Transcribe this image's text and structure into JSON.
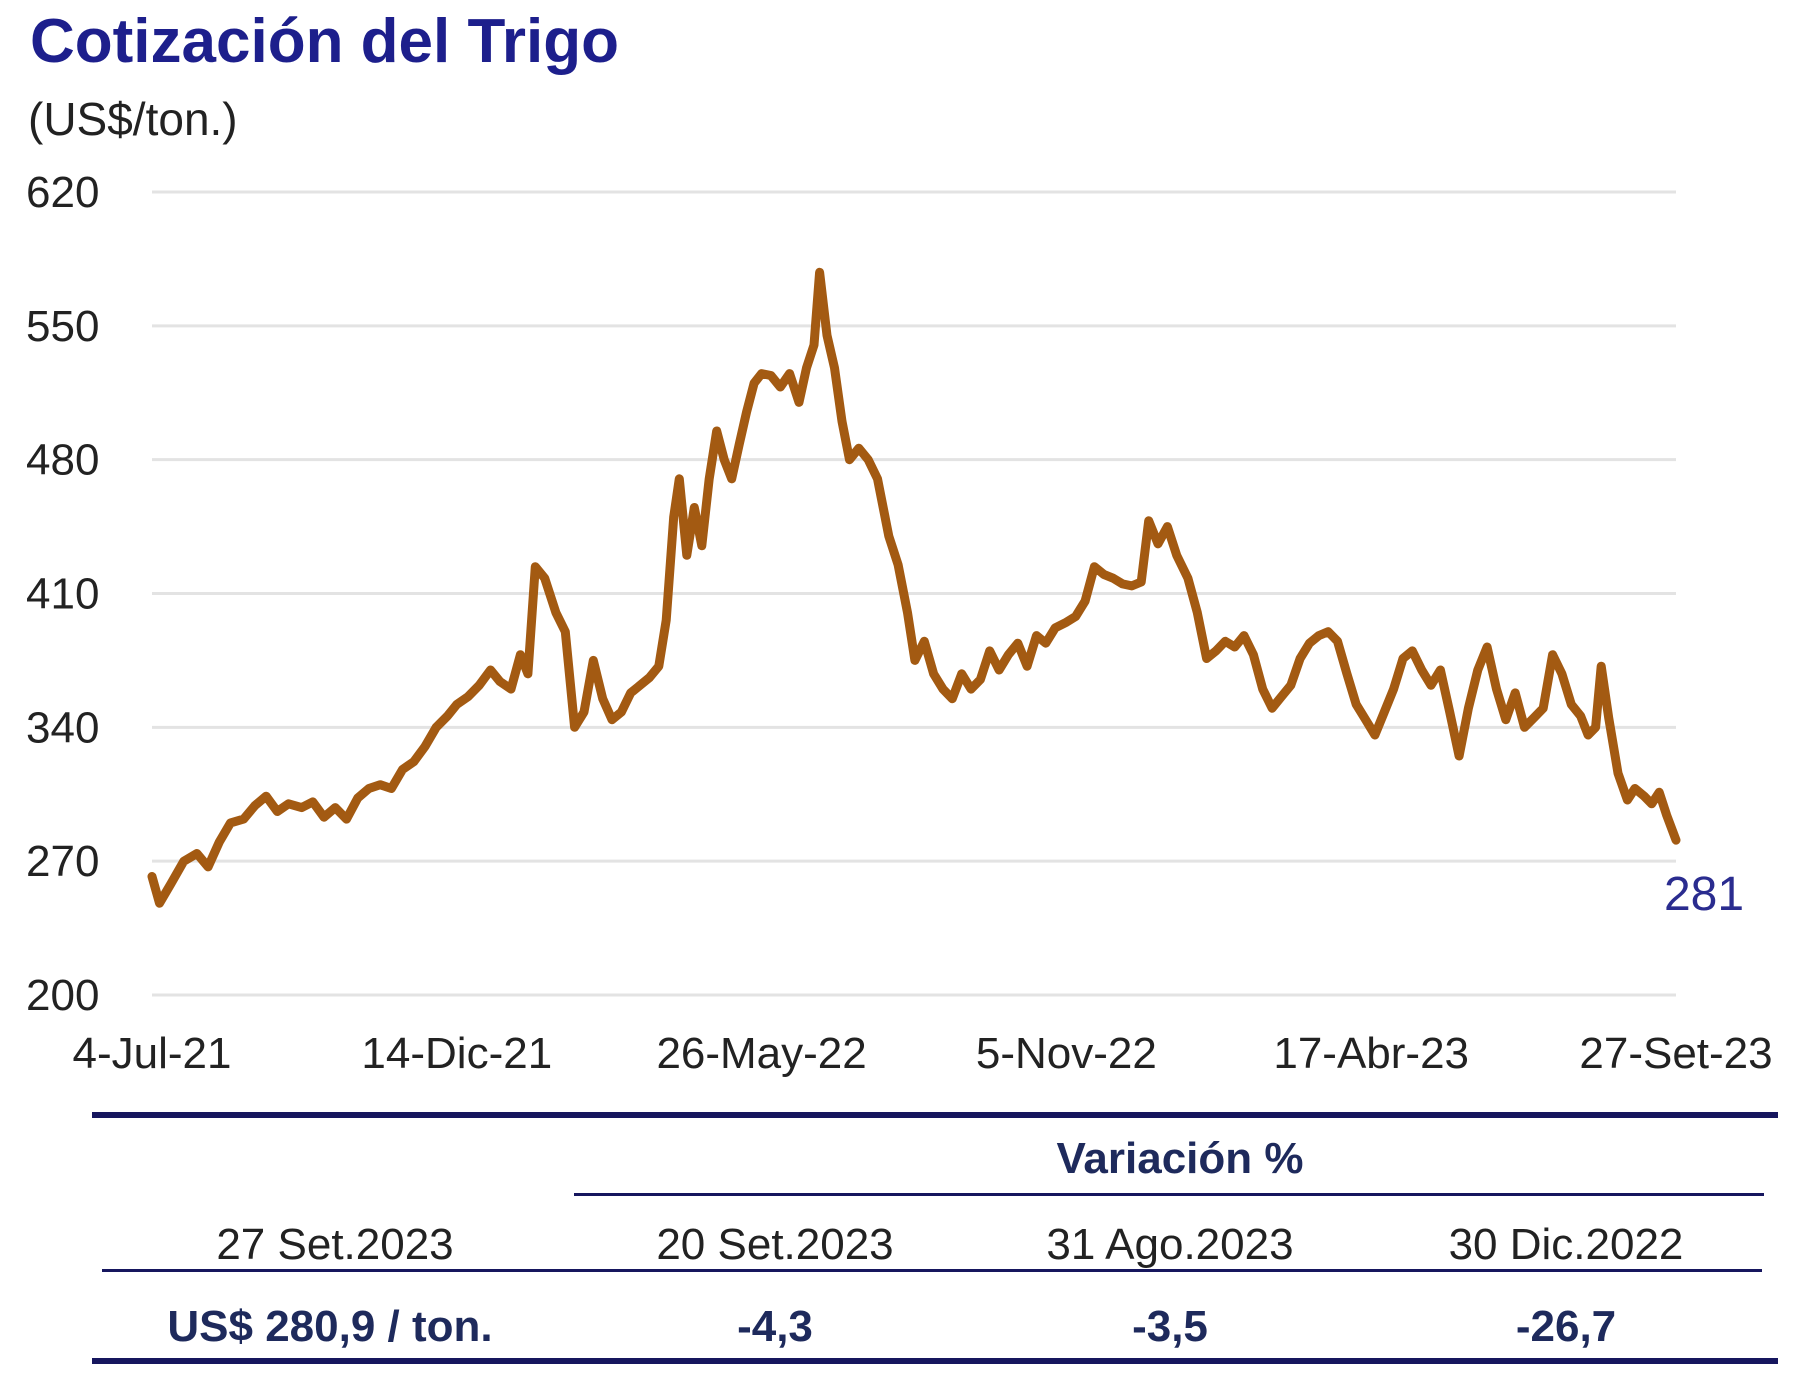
{
  "title": "Cotización del Trigo",
  "unit": "(US$/ton.)",
  "chart_data": {
    "type": "line",
    "xlabel": "",
    "ylabel": "",
    "ylim": [
      200,
      620
    ],
    "y_ticks": [
      620,
      550,
      480,
      410,
      340,
      270,
      200
    ],
    "x_range": [
      "2021-07-04",
      "2023-09-27"
    ],
    "x_tick_labels": [
      "4-Jul-21",
      "14-Dic-21",
      "26-May-22",
      "5-Nov-22",
      "17-Abr-23",
      "27-Set-23"
    ],
    "x_tick_dates": [
      "2021-07-04",
      "2021-12-14",
      "2022-05-26",
      "2022-11-05",
      "2023-04-17",
      "2023-09-27"
    ],
    "grid": true,
    "line_color": "#a35a12",
    "last_value_label": "281",
    "series": [
      {
        "name": "",
        "points": [
          [
            "2021-07-04",
            262
          ],
          [
            "2021-07-08",
            248
          ],
          [
            "2021-07-14",
            258
          ],
          [
            "2021-07-21",
            270
          ],
          [
            "2021-07-28",
            274
          ],
          [
            "2021-08-03",
            267
          ],
          [
            "2021-08-09",
            280
          ],
          [
            "2021-08-15",
            290
          ],
          [
            "2021-08-22",
            292
          ],
          [
            "2021-08-28",
            299
          ],
          [
            "2021-09-03",
            304
          ],
          [
            "2021-09-09",
            296
          ],
          [
            "2021-09-15",
            300
          ],
          [
            "2021-09-22",
            298
          ],
          [
            "2021-09-28",
            301
          ],
          [
            "2021-10-04",
            293
          ],
          [
            "2021-10-10",
            298
          ],
          [
            "2021-10-16",
            292
          ],
          [
            "2021-10-22",
            303
          ],
          [
            "2021-10-28",
            308
          ],
          [
            "2021-11-03",
            310
          ],
          [
            "2021-11-09",
            308
          ],
          [
            "2021-11-15",
            318
          ],
          [
            "2021-11-21",
            322
          ],
          [
            "2021-11-27",
            330
          ],
          [
            "2021-12-03",
            340
          ],
          [
            "2021-12-09",
            346
          ],
          [
            "2021-12-14",
            352
          ],
          [
            "2021-12-20",
            356
          ],
          [
            "2021-12-26",
            362
          ],
          [
            "2022-01-01",
            370
          ],
          [
            "2022-01-06",
            364
          ],
          [
            "2022-01-12",
            360
          ],
          [
            "2022-01-17",
            378
          ],
          [
            "2022-01-21",
            368
          ],
          [
            "2022-01-25",
            424
          ],
          [
            "2022-01-30",
            418
          ],
          [
            "2022-02-05",
            400
          ],
          [
            "2022-02-10",
            390
          ],
          [
            "2022-02-15",
            340
          ],
          [
            "2022-02-20",
            348
          ],
          [
            "2022-02-25",
            375
          ],
          [
            "2022-03-02",
            355
          ],
          [
            "2022-03-07",
            344
          ],
          [
            "2022-03-12",
            348
          ],
          [
            "2022-03-17",
            358
          ],
          [
            "2022-03-22",
            362
          ],
          [
            "2022-03-27",
            366
          ],
          [
            "2022-04-01",
            372
          ],
          [
            "2022-04-05",
            396
          ],
          [
            "2022-04-09",
            450
          ],
          [
            "2022-04-12",
            470
          ],
          [
            "2022-04-16",
            430
          ],
          [
            "2022-04-20",
            455
          ],
          [
            "2022-04-24",
            435
          ],
          [
            "2022-04-28",
            470
          ],
          [
            "2022-05-02",
            495
          ],
          [
            "2022-05-06",
            480
          ],
          [
            "2022-05-10",
            470
          ],
          [
            "2022-05-14",
            488
          ],
          [
            "2022-05-18",
            505
          ],
          [
            "2022-05-22",
            520
          ],
          [
            "2022-05-26",
            525
          ],
          [
            "2022-05-31",
            524
          ],
          [
            "2022-06-05",
            518
          ],
          [
            "2022-06-10",
            525
          ],
          [
            "2022-06-15",
            510
          ],
          [
            "2022-06-19",
            528
          ],
          [
            "2022-06-23",
            540
          ],
          [
            "2022-06-26",
            578
          ],
          [
            "2022-06-30",
            545
          ],
          [
            "2022-07-04",
            528
          ],
          [
            "2022-07-08",
            500
          ],
          [
            "2022-07-12",
            480
          ],
          [
            "2022-07-17",
            486
          ],
          [
            "2022-07-22",
            480
          ],
          [
            "2022-07-27",
            470
          ],
          [
            "2022-08-02",
            440
          ],
          [
            "2022-08-07",
            425
          ],
          [
            "2022-08-12",
            400
          ],
          [
            "2022-08-16",
            375
          ],
          [
            "2022-08-21",
            385
          ],
          [
            "2022-08-26",
            368
          ],
          [
            "2022-08-31",
            360
          ],
          [
            "2022-09-05",
            355
          ],
          [
            "2022-09-10",
            368
          ],
          [
            "2022-09-15",
            360
          ],
          [
            "2022-09-20",
            365
          ],
          [
            "2022-09-25",
            380
          ],
          [
            "2022-09-30",
            370
          ],
          [
            "2022-10-05",
            378
          ],
          [
            "2022-10-10",
            384
          ],
          [
            "2022-10-15",
            372
          ],
          [
            "2022-10-20",
            388
          ],
          [
            "2022-10-25",
            384
          ],
          [
            "2022-10-30",
            392
          ],
          [
            "2022-11-05",
            395
          ],
          [
            "2022-11-10",
            398
          ],
          [
            "2022-11-15",
            406
          ],
          [
            "2022-11-20",
            424
          ],
          [
            "2022-11-25",
            420
          ],
          [
            "2022-11-30",
            418
          ],
          [
            "2022-12-05",
            415
          ],
          [
            "2022-12-10",
            414
          ],
          [
            "2022-12-15",
            416
          ],
          [
            "2022-12-19",
            448
          ],
          [
            "2022-12-24",
            436
          ],
          [
            "2022-12-29",
            445
          ],
          [
            "2023-01-03",
            430
          ],
          [
            "2023-01-09",
            418
          ],
          [
            "2023-01-14",
            400
          ],
          [
            "2023-01-19",
            376
          ],
          [
            "2023-01-24",
            380
          ],
          [
            "2023-01-29",
            385
          ],
          [
            "2023-02-03",
            382
          ],
          [
            "2023-02-08",
            388
          ],
          [
            "2023-02-13",
            378
          ],
          [
            "2023-02-18",
            360
          ],
          [
            "2023-02-23",
            350
          ],
          [
            "2023-02-28",
            356
          ],
          [
            "2023-03-05",
            362
          ],
          [
            "2023-03-10",
            376
          ],
          [
            "2023-03-15",
            384
          ],
          [
            "2023-03-20",
            388
          ],
          [
            "2023-03-25",
            390
          ],
          [
            "2023-03-30",
            385
          ],
          [
            "2023-04-04",
            368
          ],
          [
            "2023-04-09",
            352
          ],
          [
            "2023-04-14",
            344
          ],
          [
            "2023-04-19",
            336
          ],
          [
            "2023-04-24",
            348
          ],
          [
            "2023-04-29",
            360
          ],
          [
            "2023-05-04",
            376
          ],
          [
            "2023-05-09",
            380
          ],
          [
            "2023-05-14",
            370
          ],
          [
            "2023-05-19",
            362
          ],
          [
            "2023-05-24",
            370
          ],
          [
            "2023-05-29",
            348
          ],
          [
            "2023-06-03",
            325
          ],
          [
            "2023-06-08",
            350
          ],
          [
            "2023-06-13",
            370
          ],
          [
            "2023-06-18",
            382
          ],
          [
            "2023-06-23",
            360
          ],
          [
            "2023-06-28",
            344
          ],
          [
            "2023-07-03",
            358
          ],
          [
            "2023-07-08",
            340
          ],
          [
            "2023-07-13",
            345
          ],
          [
            "2023-07-18",
            350
          ],
          [
            "2023-07-23",
            378
          ],
          [
            "2023-07-28",
            368
          ],
          [
            "2023-08-02",
            352
          ],
          [
            "2023-08-07",
            346
          ],
          [
            "2023-08-11",
            336
          ],
          [
            "2023-08-15",
            340
          ],
          [
            "2023-08-18",
            372
          ],
          [
            "2023-08-22",
            345
          ],
          [
            "2023-08-27",
            316
          ],
          [
            "2023-09-01",
            302
          ],
          [
            "2023-09-05",
            308
          ],
          [
            "2023-09-10",
            304
          ],
          [
            "2023-09-14",
            300
          ],
          [
            "2023-09-18",
            306
          ],
          [
            "2023-09-22",
            294
          ],
          [
            "2023-09-27",
            281
          ]
        ]
      }
    ]
  },
  "table": {
    "variation_header": "Variación %",
    "current_date": "27 Set.2023",
    "comparison_dates": [
      "20 Set.2023",
      "31 Ago.2023",
      "30 Dic.2022"
    ],
    "current_value": "US$ 280,9 / ton.",
    "variations": [
      "-4,3",
      "-3,5",
      "-26,7"
    ],
    "rule_color": "#16165e"
  }
}
